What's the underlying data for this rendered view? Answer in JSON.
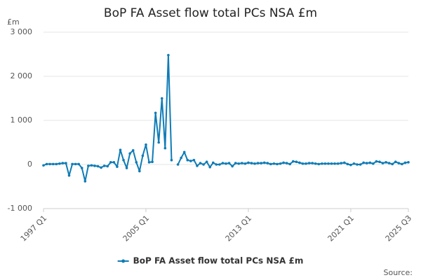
{
  "chart_data": {
    "type": "line",
    "title": "BoP FA Asset flow total PCs NSA £m",
    "y_unit": "£m",
    "source": "Source:",
    "categories": [
      "1997 Q1",
      null,
      null,
      null,
      null,
      null,
      null,
      null,
      null,
      null,
      null,
      null,
      null,
      null,
      null,
      null,
      null,
      null,
      null,
      null,
      null,
      null,
      null,
      null,
      null,
      null,
      null,
      null,
      null,
      null,
      null,
      null,
      "2005 Q1",
      null,
      null,
      null,
      null,
      null,
      null,
      null,
      null,
      null,
      null,
      null,
      null,
      null,
      null,
      null,
      null,
      null,
      null,
      null,
      null,
      null,
      null,
      null,
      null,
      null,
      null,
      null,
      null,
      null,
      null,
      null,
      "2013 Q1",
      null,
      null,
      null,
      null,
      null,
      null,
      null,
      null,
      null,
      null,
      null,
      null,
      null,
      null,
      null,
      null,
      null,
      null,
      null,
      null,
      null,
      null,
      null,
      null,
      null,
      null,
      null,
      null,
      null,
      null,
      null,
      "2021 Q1",
      null,
      null,
      null,
      null,
      null,
      null,
      null,
      null,
      null,
      null,
      null,
      null,
      null,
      null,
      null,
      null,
      null,
      "2025 Q3"
    ],
    "series": [
      {
        "name": "BoP FA Asset flow total PCs NSA £m",
        "color": "#0f7cb6",
        "values": [
          -20,
          10,
          10,
          10,
          10,
          20,
          30,
          30,
          -250,
          10,
          10,
          10,
          -80,
          -380,
          -30,
          -20,
          -30,
          -40,
          -70,
          -30,
          -40,
          50,
          50,
          -50,
          330,
          100,
          -80,
          250,
          320,
          50,
          -150,
          200,
          450,
          50,
          60,
          1170,
          500,
          1500,
          370,
          2480,
          100,
          null,
          0,
          150,
          280,
          100,
          80,
          100,
          -30,
          30,
          0,
          60,
          -60,
          40,
          0,
          0,
          30,
          20,
          30,
          -40,
          30,
          20,
          30,
          20,
          40,
          30,
          20,
          30,
          30,
          40,
          30,
          10,
          20,
          10,
          20,
          40,
          30,
          10,
          70,
          60,
          40,
          20,
          20,
          30,
          30,
          20,
          10,
          20,
          20,
          20,
          20,
          20,
          20,
          30,
          40,
          10,
          -10,
          20,
          0,
          0,
          40,
          30,
          40,
          20,
          70,
          60,
          30,
          50,
          30,
          10,
          60,
          30,
          10,
          40,
          50
        ]
      }
    ],
    "ylim": [
      -1000,
      3000
    ],
    "yticks": [
      {
        "value": 3000,
        "label": "3 000"
      },
      {
        "value": 2000,
        "label": "2 000"
      },
      {
        "value": 1000,
        "label": "1 000"
      },
      0,
      {
        "value": -1000,
        "label": "-1 000"
      }
    ],
    "grid": true
  }
}
